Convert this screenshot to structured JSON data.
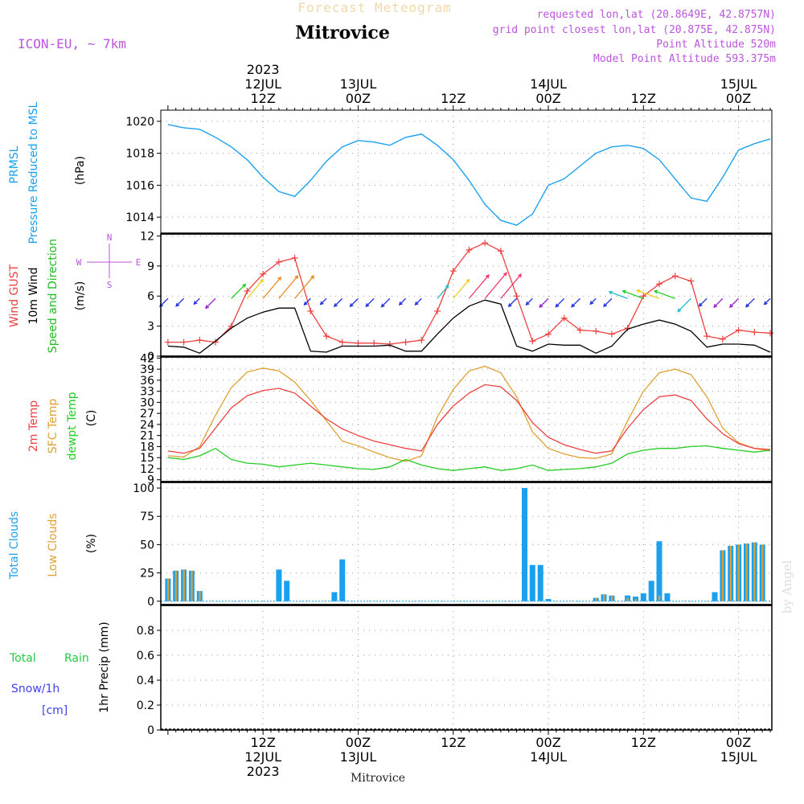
{
  "header": {
    "title": "Mitrovice",
    "subtitle": "Forecast Meteogram",
    "model": "ICON-EU, ~ 7km",
    "requested": "requested lon,lat (20.8649E, 42.8757N)",
    "gridpoint": "grid point closest lon,lat (20.875E, 42.875N)",
    "point_alt": "Point Altitude 520m",
    "model_alt": "Model Point Altitude 593.375m",
    "footer": "Mitrovice",
    "watermark": "by Angel",
    "compass": {
      "n": "N",
      "s": "S",
      "w": "W",
      "e": "E"
    }
  },
  "colors": {
    "pressure": "#1ba0f0",
    "gust": "#ee4040",
    "wind": "#000000",
    "dir": "#22bb22",
    "temp2m": "#ee4040",
    "sfc": "#e0a030",
    "dewpt": "#22cc22",
    "total_cloud": "#1ba0f0",
    "low_cloud": "#e0a030",
    "rain": "#22cc44",
    "snow": "#4040ee",
    "purple": "#bb55dd"
  },
  "time_axis": {
    "top_labels": [
      {
        "t": 12,
        "l1": "2023",
        "l2": "12JUL",
        "l3": "12Z"
      },
      {
        "t": 24,
        "l1": "",
        "l2": "13JUL",
        "l3": "00Z"
      },
      {
        "t": 36,
        "l1": "",
        "l2": "",
        "l3": "12Z"
      },
      {
        "t": 48,
        "l1": "",
        "l2": "14JUL",
        "l3": "00Z"
      },
      {
        "t": 60,
        "l1": "",
        "l2": "",
        "l3": "12Z"
      },
      {
        "t": 72,
        "l1": "",
        "l2": "15JUL",
        "l3": "00Z"
      }
    ],
    "bottom_labels": [
      {
        "t": 12,
        "l1": "12Z",
        "l2": "12JUL",
        "l3": "2023"
      },
      {
        "t": 24,
        "l1": "00Z",
        "l2": "13JUL",
        "l3": ""
      },
      {
        "t": 36,
        "l1": "12Z",
        "l2": "",
        "l3": ""
      },
      {
        "t": 48,
        "l1": "00Z",
        "l2": "14JUL",
        "l3": ""
      },
      {
        "t": 60,
        "l1": "12Z",
        "l2": "",
        "l3": ""
      },
      {
        "t": 72,
        "l1": "00Z",
        "l2": "15JUL",
        "l3": ""
      }
    ]
  },
  "chart_data": [
    {
      "type": "line",
      "panel": "pressure",
      "ylabels": [
        "PRMSL",
        "Pressure Reduced to MSL",
        "(hPa)"
      ],
      "ylim": [
        1013,
        1020.7
      ],
      "yticks": [
        1014,
        1016,
        1018,
        1020
      ],
      "x": [
        0,
        2,
        4,
        6,
        8,
        10,
        12,
        14,
        16,
        18,
        20,
        22,
        24,
        26,
        28,
        30,
        32,
        34,
        36,
        38,
        40,
        42,
        44,
        46,
        48,
        50,
        52,
        54,
        56,
        58,
        60,
        62,
        64,
        66,
        68,
        70,
        72,
        74,
        76
      ],
      "series": [
        {
          "values": [
            1019.8,
            1019.6,
            1019.5,
            1019.0,
            1018.4,
            1017.6,
            1016.5,
            1015.6,
            1015.3,
            1016.3,
            1017.5,
            1018.4,
            1018.8,
            1018.7,
            1018.5,
            1019.0,
            1019.2,
            1018.5,
            1017.6,
            1016.3,
            1014.8,
            1013.8,
            1013.5,
            1014.2,
            1016.0,
            1016.4,
            1017.2,
            1018.0,
            1018.4,
            1018.5,
            1018.3,
            1017.6,
            1016.4,
            1015.2,
            1015.0,
            1016.5,
            1018.2,
            1018.6,
            1018.9
          ]
        }
      ]
    },
    {
      "type": "line",
      "panel": "wind",
      "ylabels": [
        "Wind GUST",
        "10m Wind",
        "Speed and Direction",
        "(m/s)"
      ],
      "ylim": [
        0,
        12.2
      ],
      "yticks": [
        0,
        3,
        6,
        9,
        12
      ],
      "x": [
        0,
        2,
        4,
        6,
        8,
        10,
        12,
        14,
        16,
        18,
        20,
        22,
        24,
        26,
        28,
        30,
        32,
        34,
        36,
        38,
        40,
        42,
        44,
        46,
        48,
        50,
        52,
        54,
        56,
        58,
        60,
        62,
        64,
        66,
        68,
        70,
        72,
        74,
        76
      ],
      "series": [
        {
          "name": "Wind GUST",
          "values": [
            1.4,
            1.4,
            1.6,
            1.4,
            3.0,
            6.5,
            8.2,
            9.4,
            9.8,
            4.5,
            2.0,
            1.4,
            1.3,
            1.3,
            1.2,
            1.4,
            1.6,
            4.5,
            8.5,
            10.6,
            11.3,
            10.5,
            6.0,
            1.5,
            2.2,
            3.8,
            2.6,
            2.5,
            2.2,
            2.8,
            6.0,
            7.2,
            8.0,
            7.5,
            2.0,
            1.7,
            2.6,
            2.4,
            2.3
          ]
        },
        {
          "name": "10m Wind",
          "values": [
            1.0,
            0.9,
            0.3,
            1.5,
            2.8,
            3.8,
            4.4,
            4.8,
            4.8,
            0.5,
            0.4,
            1.0,
            1.0,
            1.0,
            1.1,
            0.5,
            0.5,
            2.2,
            3.8,
            5.0,
            5.6,
            5.2,
            1.0,
            0.5,
            1.2,
            1.1,
            1.1,
            0.3,
            1.0,
            2.7,
            3.2,
            3.6,
            3.2,
            2.5,
            0.9,
            1.2,
            1.2,
            1.1,
            0.4
          ]
        }
      ],
      "dir_deg": [
        225,
        225,
        225,
        225,
        45,
        40,
        40,
        40,
        40,
        225,
        225,
        225,
        225,
        225,
        225,
        225,
        225,
        40,
        40,
        40,
        40,
        40,
        225,
        225,
        225,
        225,
        225,
        225,
        225,
        290,
        290,
        290,
        290,
        225,
        225,
        225,
        225,
        225,
        225
      ]
    },
    {
      "type": "line",
      "panel": "temperature",
      "ylabels": [
        "2m Temp",
        "SFC Temp",
        "dewpt Temp",
        "(C)"
      ],
      "ylim": [
        8.5,
        42.3
      ],
      "yticks": [
        9,
        12,
        15,
        18,
        21,
        24,
        27,
        30,
        33,
        36,
        39,
        42
      ],
      "x": [
        0,
        2,
        4,
        6,
        8,
        10,
        12,
        14,
        16,
        18,
        20,
        22,
        24,
        26,
        28,
        30,
        32,
        34,
        36,
        38,
        40,
        42,
        44,
        46,
        48,
        50,
        52,
        54,
        56,
        58,
        60,
        62,
        64,
        66,
        68,
        70,
        72,
        74,
        76
      ],
      "series": [
        {
          "name": "2m Temp",
          "values": [
            16.8,
            16.2,
            17.5,
            23.0,
            28.5,
            31.8,
            33.2,
            33.8,
            32.5,
            29.0,
            25.5,
            22.8,
            21.0,
            19.5,
            18.5,
            17.5,
            16.8,
            24.0,
            29.0,
            32.5,
            34.8,
            34.2,
            30.5,
            24.5,
            20.5,
            18.5,
            17.2,
            16.2,
            16.8,
            23.0,
            28.0,
            31.5,
            32.0,
            30.5,
            25.5,
            21.5,
            18.8,
            17.5,
            17.2
          ]
        },
        {
          "name": "SFC Temp",
          "values": [
            15.5,
            15.2,
            18.0,
            26.5,
            34.0,
            38.2,
            39.3,
            38.5,
            35.5,
            30.5,
            25.0,
            19.5,
            18.2,
            16.5,
            15.0,
            14.0,
            15.5,
            26.0,
            33.5,
            38.5,
            39.8,
            38.0,
            31.5,
            22.0,
            17.5,
            16.0,
            15.0,
            14.8,
            16.0,
            25.0,
            33.0,
            38.0,
            39.0,
            37.5,
            31.5,
            23.0,
            19.0,
            17.5,
            16.8
          ]
        },
        {
          "name": "dewpt Temp",
          "values": [
            15.0,
            14.5,
            15.5,
            17.5,
            14.5,
            13.5,
            13.2,
            12.5,
            13.0,
            13.5,
            13.0,
            12.5,
            12.0,
            11.8,
            12.5,
            14.5,
            13.0,
            12.0,
            11.5,
            12.0,
            12.5,
            11.5,
            12.0,
            13.0,
            11.5,
            11.8,
            12.0,
            12.5,
            13.5,
            16.0,
            17.0,
            17.5,
            17.5,
            18.0,
            18.2,
            17.5,
            17.0,
            16.5,
            17.0
          ]
        }
      ]
    },
    {
      "type": "bar",
      "panel": "clouds",
      "ylabels": [
        "Total Clouds",
        "Low Clouds",
        "(%)"
      ],
      "ylim": [
        -3,
        105
      ],
      "yticks": [
        0,
        25,
        50,
        75,
        100
      ],
      "x": [
        0,
        1,
        2,
        3,
        4,
        5,
        6,
        7,
        8,
        9,
        10,
        11,
        12,
        13,
        14,
        15,
        16,
        17,
        18,
        19,
        20,
        21,
        22,
        23,
        24,
        25,
        26,
        27,
        28,
        29,
        30,
        31,
        32,
        33,
        34,
        35,
        36,
        37,
        38,
        39,
        40,
        41,
        42,
        43,
        44,
        45,
        46,
        47,
        48,
        49,
        50,
        51,
        52,
        53,
        54,
        55,
        56,
        57,
        58,
        59,
        60,
        61,
        62,
        63,
        64,
        65,
        66,
        67,
        68,
        69,
        70,
        71,
        72,
        73,
        74,
        75,
        76
      ],
      "series": [
        {
          "name": "Total Clouds",
          "values": [
            20,
            27,
            28,
            27,
            9,
            0,
            0,
            0,
            0,
            0,
            0,
            0,
            0,
            0,
            28,
            18,
            0,
            0,
            0,
            0,
            0,
            8,
            37,
            0,
            0,
            0,
            0,
            0,
            0,
            0,
            0,
            0,
            0,
            0,
            0,
            0,
            0,
            0,
            0,
            0,
            0,
            0,
            0,
            0,
            0,
            100,
            32,
            32,
            2,
            0,
            0,
            0,
            0,
            0,
            3,
            6,
            5,
            0,
            5,
            4,
            7,
            18,
            53,
            7,
            0,
            0,
            0,
            0,
            0,
            8,
            45,
            49,
            50,
            51,
            52,
            50,
            0
          ]
        },
        {
          "name": "Low Clouds",
          "values": [
            20,
            27,
            28,
            27,
            9,
            0,
            0,
            0,
            0,
            0,
            0,
            0,
            0,
            0,
            0,
            0,
            0,
            0,
            0,
            0,
            0,
            0,
            0,
            0,
            0,
            0,
            0,
            0,
            0,
            0,
            0,
            0,
            0,
            0,
            0,
            0,
            0,
            0,
            0,
            0,
            0,
            0,
            0,
            0,
            0,
            0,
            0,
            0,
            0,
            0,
            0,
            0,
            0,
            0,
            3,
            6,
            5,
            0,
            3,
            2,
            0,
            0,
            5,
            0,
            0,
            0,
            0,
            0,
            0,
            0,
            45,
            49,
            50,
            51,
            52,
            50,
            0
          ]
        }
      ]
    },
    {
      "type": "bar",
      "panel": "precip",
      "ylabels": [
        "Total",
        "Rain",
        "Snow/1h",
        "[cm]",
        "1hr Precip (mm)"
      ],
      "ylim": [
        0,
        1.0
      ],
      "yticks": [
        0,
        0.2,
        0.4,
        0.6,
        0.8
      ],
      "series": [
        {
          "name": "Total",
          "values": []
        },
        {
          "name": "Rain",
          "values": []
        },
        {
          "name": "Snow/1h",
          "values": []
        }
      ]
    }
  ]
}
